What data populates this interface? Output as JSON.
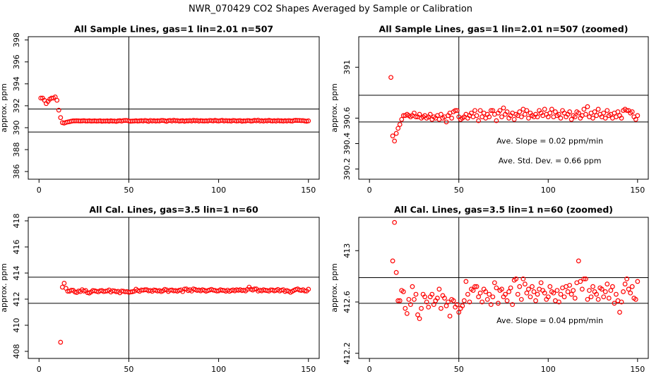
{
  "title": "NWR_070429  CO2 Shapes Averaged by Sample or Calibration",
  "chart_data": [
    {
      "type": "scatter",
      "title": "All Sample Lines, gas=1 lin=2.01 n=507",
      "ylabel": "approx. ppm",
      "color": "#ff0000",
      "xlim": [
        -6,
        156
      ],
      "xticks": [
        0,
        50,
        100,
        150
      ],
      "ylim": [
        385.3,
        398.3
      ],
      "yticks": [
        386,
        388,
        390,
        392,
        394,
        396,
        398
      ],
      "vline": 50,
      "hlines": [
        391.7,
        389.6
      ],
      "annotations": [],
      "x": [
        1,
        2,
        3,
        4,
        5,
        6,
        7,
        8,
        9,
        10,
        11,
        12,
        13,
        14,
        15,
        16,
        17,
        18,
        19,
        20,
        21,
        22,
        23,
        24,
        25,
        26,
        27,
        28,
        29,
        30,
        31,
        32,
        33,
        34,
        35,
        36,
        37,
        38,
        39,
        40,
        41,
        42,
        43,
        44,
        45,
        46,
        47,
        48,
        49,
        50,
        51,
        52,
        53,
        54,
        55,
        56,
        57,
        58,
        59,
        60,
        61,
        62,
        63,
        64,
        65,
        66,
        67,
        68,
        69,
        70,
        71,
        72,
        73,
        74,
        75,
        76,
        77,
        78,
        79,
        80,
        81,
        82,
        83,
        84,
        85,
        86,
        87,
        88,
        89,
        90,
        91,
        92,
        93,
        94,
        95,
        96,
        97,
        98,
        99,
        100,
        101,
        102,
        103,
        104,
        105,
        106,
        107,
        108,
        109,
        110,
        111,
        112,
        113,
        114,
        115,
        116,
        117,
        118,
        119,
        120,
        121,
        122,
        123,
        124,
        125,
        126,
        127,
        128,
        129,
        130,
        131,
        132,
        133,
        134,
        135,
        136,
        137,
        138,
        139,
        140,
        141,
        142,
        143,
        144,
        145,
        146,
        147,
        148,
        149,
        150
      ],
      "values": [
        392.7,
        392.7,
        392.5,
        392.2,
        392.4,
        392.6,
        392.7,
        392.7,
        392.8,
        392.5,
        391.6,
        390.92,
        390.46,
        390.42,
        390.48,
        390.52,
        390.55,
        390.59,
        390.62,
        390.62,
        390.63,
        390.62,
        390.61,
        390.62,
        390.64,
        390.61,
        390.61,
        390.63,
        390.6,
        390.61,
        390.62,
        390.6,
        390.61,
        390.63,
        390.59,
        390.61,
        390.6,
        390.62,
        390.59,
        390.63,
        390.6,
        390.61,
        390.57,
        390.62,
        390.64,
        390.6,
        390.65,
        390.66,
        390.66,
        390.61,
        390.59,
        390.6,
        390.61,
        390.63,
        390.6,
        390.62,
        390.64,
        390.61,
        390.66,
        390.62,
        390.58,
        390.66,
        390.61,
        390.64,
        390.6,
        390.63,
        390.61,
        390.66,
        390.66,
        390.63,
        390.58,
        390.64,
        390.66,
        390.61,
        390.68,
        390.63,
        390.65,
        390.6,
        390.62,
        390.64,
        390.59,
        390.63,
        390.62,
        390.65,
        390.61,
        390.67,
        390.63,
        390.66,
        390.6,
        390.64,
        390.62,
        390.61,
        390.63,
        390.61,
        390.66,
        390.64,
        390.62,
        390.67,
        390.63,
        390.61,
        390.64,
        390.67,
        390.61,
        390.65,
        390.62,
        390.63,
        390.6,
        390.66,
        390.64,
        390.61,
        390.63,
        390.65,
        390.59,
        390.62,
        390.61,
        390.65,
        390.64,
        390.6,
        390.62,
        390.67,
        390.63,
        390.69,
        390.61,
        390.64,
        390.6,
        390.65,
        390.62,
        390.67,
        390.63,
        390.61,
        390.64,
        390.6,
        390.66,
        390.62,
        390.63,
        390.6,
        390.64,
        390.61,
        390.65,
        390.62,
        390.6,
        390.66,
        390.67,
        390.66,
        390.66,
        390.64,
        390.65,
        390.61,
        390.59,
        390.62
      ]
    },
    {
      "type": "scatter",
      "title": "All Sample Lines, gas=1 lin=2.01 n=507 (zoomed)",
      "ylabel": "approx. ppm",
      "color": "#ff0000",
      "xlim": [
        -6,
        156
      ],
      "xticks": [
        0,
        50,
        100,
        150
      ],
      "ylim": [
        390.12,
        391.24
      ],
      "yticks": [
        390.2,
        390.4,
        390.6,
        391.0
      ],
      "vline": 50,
      "hlines": [
        390.78,
        390.57
      ],
      "annotations": [
        "Ave. Slope =  0.02  ppm/min",
        "Ave. Std. Dev. =  0.66  ppm"
      ],
      "x": [
        12,
        13,
        14,
        15,
        16,
        17,
        18,
        19,
        20,
        21,
        22,
        23,
        24,
        25,
        26,
        27,
        28,
        29,
        30,
        31,
        32,
        33,
        34,
        35,
        36,
        37,
        38,
        39,
        40,
        41,
        42,
        43,
        44,
        45,
        46,
        47,
        48,
        49,
        50,
        51,
        52,
        53,
        54,
        55,
        56,
        57,
        58,
        59,
        60,
        61,
        62,
        63,
        64,
        65,
        66,
        67,
        68,
        69,
        70,
        71,
        72,
        73,
        74,
        75,
        76,
        77,
        78,
        79,
        80,
        81,
        82,
        83,
        84,
        85,
        86,
        87,
        88,
        89,
        90,
        91,
        92,
        93,
        94,
        95,
        96,
        97,
        98,
        99,
        100,
        101,
        102,
        103,
        104,
        105,
        106,
        107,
        108,
        109,
        110,
        111,
        112,
        113,
        114,
        115,
        116,
        117,
        118,
        119,
        120,
        121,
        122,
        123,
        124,
        125,
        126,
        127,
        128,
        129,
        130,
        131,
        132,
        133,
        134,
        135,
        136,
        137,
        138,
        139,
        140,
        141,
        142,
        143,
        144,
        145,
        146,
        147,
        148,
        149,
        150
      ],
      "values": [
        390.92,
        390.46,
        390.42,
        390.48,
        390.52,
        390.55,
        390.59,
        390.62,
        390.62,
        390.63,
        390.62,
        390.61,
        390.62,
        390.64,
        390.61,
        390.61,
        390.63,
        390.6,
        390.61,
        390.62,
        390.6,
        390.61,
        390.63,
        390.59,
        390.61,
        390.6,
        390.62,
        390.59,
        390.63,
        390.6,
        390.61,
        390.57,
        390.62,
        390.64,
        390.6,
        390.65,
        390.66,
        390.66,
        390.61,
        390.59,
        390.6,
        390.61,
        390.63,
        390.6,
        390.62,
        390.64,
        390.61,
        390.66,
        390.62,
        390.58,
        390.66,
        390.61,
        390.64,
        390.6,
        390.63,
        390.61,
        390.66,
        390.66,
        390.63,
        390.58,
        390.64,
        390.66,
        390.61,
        390.68,
        390.63,
        390.65,
        390.6,
        390.62,
        390.64,
        390.59,
        390.63,
        390.62,
        390.65,
        390.61,
        390.67,
        390.63,
        390.66,
        390.6,
        390.64,
        390.62,
        390.61,
        390.63,
        390.61,
        390.66,
        390.64,
        390.62,
        390.67,
        390.63,
        390.61,
        390.64,
        390.67,
        390.61,
        390.65,
        390.62,
        390.63,
        390.6,
        390.66,
        390.64,
        390.61,
        390.63,
        390.65,
        390.59,
        390.62,
        390.61,
        390.65,
        390.64,
        390.6,
        390.62,
        390.67,
        390.63,
        390.69,
        390.61,
        390.64,
        390.6,
        390.65,
        390.62,
        390.67,
        390.63,
        390.61,
        390.64,
        390.6,
        390.66,
        390.62,
        390.63,
        390.6,
        390.64,
        390.61,
        390.65,
        390.62,
        390.6,
        390.66,
        390.67,
        390.66,
        390.66,
        390.64,
        390.65,
        390.61,
        390.59,
        390.62
      ]
    },
    {
      "type": "scatter",
      "title": "All Cal. Lines, gas=3.5 lin=1 n=60",
      "ylabel": "approx. ppm",
      "color": "#ff0000",
      "xlim": [
        -6,
        156
      ],
      "xticks": [
        0,
        50,
        100,
        150
      ],
      "ylim": [
        407.46,
        418.27
      ],
      "yticks": [
        408,
        410,
        412,
        414,
        416,
        418
      ],
      "vline": 50,
      "hlines": [
        413.68,
        411.68
      ],
      "annotations": [],
      "x": [
        12,
        13,
        14,
        15,
        16,
        17,
        18,
        19,
        20,
        21,
        22,
        23,
        24,
        25,
        26,
        27,
        28,
        29,
        30,
        31,
        32,
        33,
        34,
        35,
        36,
        37,
        38,
        39,
        40,
        41,
        42,
        43,
        44,
        45,
        46,
        47,
        48,
        49,
        50,
        51,
        52,
        53,
        54,
        55,
        56,
        57,
        58,
        59,
        60,
        61,
        62,
        63,
        64,
        65,
        66,
        67,
        68,
        69,
        70,
        71,
        72,
        73,
        74,
        75,
        76,
        77,
        78,
        79,
        80,
        81,
        82,
        83,
        84,
        85,
        86,
        87,
        88,
        89,
        90,
        91,
        92,
        93,
        94,
        95,
        96,
        97,
        98,
        99,
        100,
        101,
        102,
        103,
        104,
        105,
        106,
        107,
        108,
        109,
        110,
        111,
        112,
        113,
        114,
        115,
        116,
        117,
        118,
        119,
        120,
        121,
        122,
        123,
        124,
        125,
        126,
        127,
        128,
        129,
        130,
        131,
        132,
        133,
        134,
        135,
        136,
        137,
        138,
        139,
        140,
        141,
        142,
        143,
        144,
        145,
        146,
        147,
        148,
        149,
        150
      ],
      "values": [
        408.7,
        412.92,
        413.22,
        412.83,
        412.61,
        412.61,
        412.69,
        412.68,
        412.55,
        412.51,
        412.62,
        412.58,
        412.72,
        412.62,
        412.66,
        412.5,
        412.47,
        412.55,
        412.66,
        412.64,
        412.6,
        412.56,
        412.64,
        412.66,
        412.58,
        412.61,
        412.63,
        412.7,
        412.55,
        412.65,
        412.63,
        412.57,
        412.6,
        412.49,
        412.62,
        412.61,
        412.56,
        412.58,
        412.52,
        412.55,
        412.57,
        412.61,
        412.76,
        412.66,
        412.6,
        412.7,
        412.69,
        412.72,
        412.72,
        412.64,
        412.67,
        412.6,
        412.7,
        412.68,
        412.62,
        412.66,
        412.58,
        412.64,
        412.75,
        412.71,
        412.59,
        412.69,
        412.7,
        412.64,
        412.66,
        412.61,
        412.68,
        412.71,
        412.58,
        412.77,
        412.78,
        412.66,
        412.72,
        412.62,
        412.78,
        412.74,
        412.67,
        412.7,
        412.64,
        412.72,
        412.68,
        412.61,
        412.66,
        412.7,
        412.75,
        412.69,
        412.67,
        412.62,
        412.64,
        412.72,
        412.68,
        412.67,
        412.61,
        412.69,
        412.6,
        412.66,
        412.71,
        412.64,
        412.72,
        412.68,
        412.73,
        412.66,
        412.69,
        412.63,
        412.75,
        412.92,
        412.76,
        412.7,
        412.78,
        412.78,
        412.62,
        412.69,
        412.64,
        412.72,
        412.68,
        412.66,
        412.62,
        412.71,
        412.7,
        412.64,
        412.68,
        412.74,
        412.63,
        412.69,
        412.72,
        412.59,
        412.66,
        412.61,
        412.52,
        412.6,
        412.68,
        412.74,
        412.78,
        412.7,
        412.67,
        412.72,
        412.63,
        412.62,
        412.76
      ]
    },
    {
      "type": "scatter",
      "title": "All Cal. Lines, gas=3.5 lin=1 n=60 (zoomed)",
      "ylabel": "approx. ppm",
      "color": "#ff0000",
      "xlim": [
        -6,
        156
      ],
      "xticks": [
        0,
        50,
        100,
        150
      ],
      "ylim": [
        412.16,
        413.26
      ],
      "yticks": [
        412.2,
        412.6,
        413.0
      ],
      "vline": 50,
      "hlines": [
        412.79,
        412.59
      ],
      "annotations": [
        "Ave. Slope =  0.04  ppm/min"
      ],
      "x": [
        13,
        14,
        15,
        16,
        17,
        18,
        19,
        20,
        21,
        22,
        23,
        24,
        25,
        26,
        27,
        28,
        29,
        30,
        31,
        32,
        33,
        34,
        35,
        36,
        37,
        38,
        39,
        40,
        41,
        42,
        43,
        44,
        45,
        46,
        47,
        48,
        49,
        50,
        51,
        52,
        53,
        54,
        55,
        56,
        57,
        58,
        59,
        60,
        61,
        62,
        63,
        64,
        65,
        66,
        67,
        68,
        69,
        70,
        71,
        72,
        73,
        74,
        75,
        76,
        77,
        78,
        79,
        80,
        81,
        82,
        83,
        84,
        85,
        86,
        87,
        88,
        89,
        90,
        91,
        92,
        93,
        94,
        95,
        96,
        97,
        98,
        99,
        100,
        101,
        102,
        103,
        104,
        105,
        106,
        107,
        108,
        109,
        110,
        111,
        112,
        113,
        114,
        115,
        116,
        117,
        118,
        119,
        120,
        121,
        122,
        123,
        124,
        125,
        126,
        127,
        128,
        129,
        130,
        131,
        132,
        133,
        134,
        135,
        136,
        137,
        138,
        139,
        140,
        141,
        142,
        143,
        144,
        145,
        146,
        147,
        148,
        149,
        150
      ],
      "values": [
        412.92,
        413.22,
        412.83,
        412.61,
        412.61,
        412.69,
        412.68,
        412.55,
        412.51,
        412.62,
        412.58,
        412.72,
        412.62,
        412.66,
        412.5,
        412.47,
        412.55,
        412.66,
        412.64,
        412.6,
        412.56,
        412.64,
        412.66,
        412.58,
        412.61,
        412.63,
        412.7,
        412.55,
        412.65,
        412.63,
        412.57,
        412.6,
        412.49,
        412.62,
        412.61,
        412.56,
        412.58,
        412.52,
        412.55,
        412.57,
        412.61,
        412.76,
        412.66,
        412.6,
        412.7,
        412.69,
        412.72,
        412.72,
        412.64,
        412.67,
        412.6,
        412.7,
        412.68,
        412.62,
        412.66,
        412.58,
        412.64,
        412.75,
        412.71,
        412.59,
        412.69,
        412.7,
        412.64,
        412.66,
        412.61,
        412.68,
        412.71,
        412.58,
        412.77,
        412.78,
        412.66,
        412.72,
        412.62,
        412.78,
        412.74,
        412.67,
        412.7,
        412.64,
        412.72,
        412.68,
        412.61,
        412.66,
        412.7,
        412.75,
        412.69,
        412.67,
        412.62,
        412.64,
        412.72,
        412.68,
        412.67,
        412.61,
        412.69,
        412.6,
        412.66,
        412.71,
        412.64,
        412.72,
        412.68,
        412.73,
        412.66,
        412.69,
        412.63,
        412.75,
        412.92,
        412.76,
        412.7,
        412.78,
        412.78,
        412.62,
        412.69,
        412.64,
        412.72,
        412.68,
        412.66,
        412.62,
        412.71,
        412.7,
        412.64,
        412.68,
        412.74,
        412.63,
        412.69,
        412.72,
        412.59,
        412.66,
        412.61,
        412.52,
        412.6,
        412.68,
        412.74,
        412.78,
        412.7,
        412.67,
        412.72,
        412.63,
        412.62,
        412.76
      ]
    }
  ]
}
